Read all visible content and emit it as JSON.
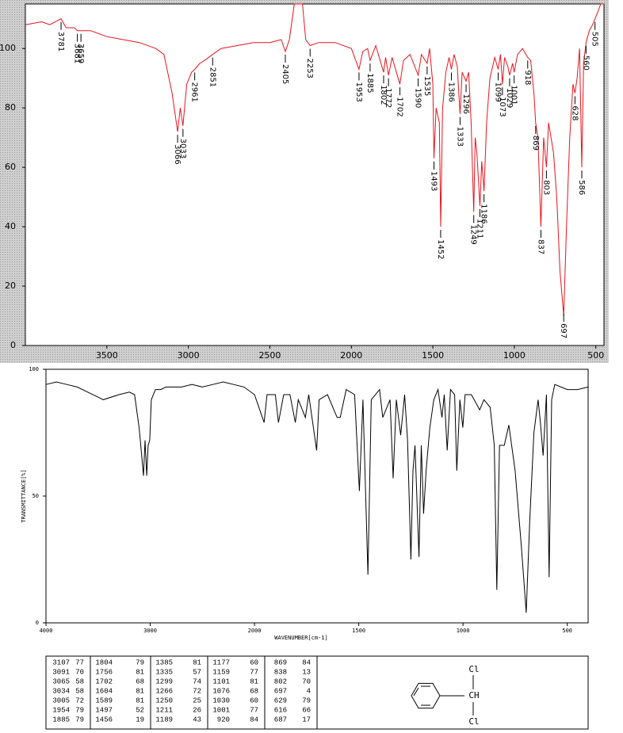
{
  "chart_data": [
    {
      "type": "line",
      "xlim": [
        4000,
        450
      ],
      "ylim": [
        0,
        115
      ],
      "xticks": [
        3500,
        3000,
        2500,
        2000,
        1500,
        1000,
        500
      ],
      "yticks": [
        0,
        20,
        40,
        60,
        80,
        100
      ],
      "x": [
        4000,
        3900,
        3850,
        3781,
        3750,
        3700,
        3681,
        3659,
        3600,
        3500,
        3400,
        3300,
        3200,
        3150,
        3100,
        3066,
        3050,
        3033,
        3010,
        2980,
        2961,
        2930,
        2900,
        2851,
        2800,
        2700,
        2600,
        2500,
        2430,
        2405,
        2380,
        2350,
        2300,
        2280,
        2253,
        2200,
        2100,
        2000,
        1953,
        1930,
        1900,
        1885,
        1850,
        1802,
        1790,
        1772,
        1750,
        1702,
        1680,
        1640,
        1590,
        1570,
        1535,
        1520,
        1500,
        1493,
        1480,
        1460,
        1452,
        1440,
        1420,
        1400,
        1386,
        1370,
        1350,
        1333,
        1320,
        1296,
        1280,
        1265,
        1249,
        1240,
        1230,
        1211,
        1200,
        1186,
        1170,
        1150,
        1120,
        1099,
        1085,
        1073,
        1060,
        1040,
        1029,
        1010,
        1001,
        980,
        950,
        918,
        900,
        880,
        869,
        855,
        837,
        820,
        803,
        790,
        760,
        740,
        720,
        697,
        680,
        660,
        640,
        628,
        615,
        600,
        586,
        575,
        560,
        540,
        520,
        505,
        490,
        470,
        450
      ],
      "series": [
        {
          "color": "#e8141e",
          "values": [
            108,
            109,
            108,
            110,
            107,
            107,
            106,
            106,
            106,
            104,
            103,
            102,
            100,
            98,
            85,
            72,
            80,
            74,
            88,
            92,
            93,
            95,
            96,
            98,
            100,
            101,
            102,
            102,
            103,
            99,
            103,
            115,
            115,
            103,
            101,
            102,
            102,
            100,
            93,
            99,
            100,
            96,
            101,
            92,
            97,
            91,
            97,
            88,
            96,
            98,
            91,
            98,
            95,
            100,
            88,
            63,
            80,
            75,
            40,
            80,
            92,
            97,
            93,
            98,
            94,
            78,
            92,
            89,
            92,
            75,
            45,
            70,
            65,
            47,
            62,
            52,
            75,
            90,
            97,
            93,
            98,
            88,
            97,
            94,
            91,
            95,
            92,
            98,
            100,
            97,
            96,
            85,
            75,
            70,
            40,
            70,
            60,
            75,
            65,
            50,
            25,
            10,
            40,
            70,
            88,
            85,
            90,
            100,
            60,
            95,
            102,
            106,
            108,
            110,
            112,
            115,
            115
          ]
        }
      ],
      "peaks": [
        3781,
        3681,
        3659,
        3066,
        3033,
        2961,
        2851,
        2405,
        2253,
        1953,
        1885,
        1802,
        1772,
        1702,
        1590,
        1535,
        1493,
        1452,
        1386,
        1333,
        1296,
        1249,
        1211,
        1186,
        1099,
        1073,
        1029,
        1001,
        918,
        869,
        837,
        803,
        697,
        628,
        586,
        560,
        505
      ],
      "peak_y": [
        110,
        106,
        106,
        72,
        74,
        93,
        98,
        99,
        101,
        93,
        96,
        92,
        91,
        88,
        91,
        95,
        63,
        40,
        93,
        78,
        89,
        45,
        47,
        52,
        93,
        88,
        91,
        92,
        97,
        75,
        40,
        60,
        10,
        85,
        60,
        102,
        110
      ]
    },
    {
      "type": "line",
      "xlim": [
        4000,
        400
      ],
      "ylim": [
        0,
        100
      ],
      "x_scale_break": 2000,
      "x_scale_factor": 2,
      "xlabel": "WAVENUMBER[cm-1]",
      "ylabel": "TRANSMITTANCE[%]",
      "xticks": [
        4000,
        3000,
        2000,
        1500,
        1000,
        500
      ],
      "yticks": [
        0,
        50,
        100
      ],
      "x": [
        4000,
        3900,
        3800,
        3700,
        3600,
        3500,
        3450,
        3300,
        3200,
        3150,
        3107,
        3091,
        3065,
        3050,
        3034,
        3020,
        3005,
        2990,
        2950,
        2900,
        2850,
        2800,
        2700,
        2600,
        2500,
        2400,
        2300,
        2200,
        2100,
        2000,
        1954,
        1940,
        1900,
        1885,
        1860,
        1830,
        1804,
        1790,
        1756,
        1740,
        1702,
        1690,
        1650,
        1604,
        1589,
        1560,
        1520,
        1497,
        1480,
        1456,
        1440,
        1400,
        1385,
        1350,
        1335,
        1320,
        1299,
        1280,
        1266,
        1250,
        1240,
        1230,
        1211,
        1200,
        1189,
        1177,
        1159,
        1140,
        1120,
        1101,
        1090,
        1076,
        1060,
        1040,
        1030,
        1015,
        1001,
        990,
        960,
        920,
        900,
        870,
        850,
        838,
        825,
        802,
        780,
        750,
        720,
        697,
        680,
        660,
        640,
        629,
        616,
        600,
        587,
        575,
        560,
        530,
        500,
        450,
        400
      ],
      "series": [
        {
          "color": "#000000",
          "values": [
            94,
            95,
            94,
            93,
            91,
            89,
            88,
            90,
            91,
            90,
            77,
            70,
            58,
            72,
            58,
            70,
            72,
            88,
            92,
            92,
            93,
            93,
            93,
            94,
            93,
            94,
            95,
            94,
            93,
            90,
            79,
            90,
            90,
            79,
            90,
            90,
            79,
            88,
            81,
            90,
            68,
            88,
            90,
            81,
            81,
            92,
            90,
            52,
            88,
            19,
            88,
            92,
            81,
            88,
            57,
            88,
            74,
            90,
            72,
            25,
            60,
            70,
            26,
            70,
            43,
            60,
            77,
            88,
            92,
            81,
            90,
            68,
            92,
            90,
            60,
            88,
            77,
            90,
            90,
            84,
            88,
            85,
            70,
            13,
            70,
            70,
            78,
            60,
            30,
            4,
            40,
            75,
            88,
            79,
            66,
            90,
            18,
            88,
            94,
            93,
            92,
            92,
            93
          ]
        }
      ]
    }
  ],
  "table": {
    "columns": [
      [
        [
          3107,
          77
        ],
        [
          3091,
          70
        ],
        [
          3065,
          58
        ],
        [
          3034,
          58
        ],
        [
          3005,
          72
        ],
        [
          1954,
          79
        ],
        [
          1885,
          79
        ]
      ],
      [
        [
          1804,
          79
        ],
        [
          1756,
          81
        ],
        [
          1702,
          68
        ],
        [
          1604,
          81
        ],
        [
          1589,
          81
        ],
        [
          1497,
          52
        ],
        [
          1456,
          19
        ]
      ],
      [
        [
          1385,
          81
        ],
        [
          1335,
          57
        ],
        [
          1299,
          74
        ],
        [
          1266,
          72
        ],
        [
          1250,
          25
        ],
        [
          1211,
          26
        ],
        [
          1189,
          43
        ]
      ],
      [
        [
          1177,
          60
        ],
        [
          1159,
          77
        ],
        [
          1101,
          81
        ],
        [
          1076,
          68
        ],
        [
          1030,
          60
        ],
        [
          1001,
          77
        ],
        [
          920,
          84
        ]
      ],
      [
        [
          869,
          84
        ],
        [
          838,
          13
        ],
        [
          802,
          70
        ],
        [
          697,
          4
        ],
        [
          629,
          79
        ],
        [
          616,
          66
        ],
        [
          687,
          17
        ]
      ]
    ]
  },
  "structure": {
    "labels": [
      "Cl",
      "CH",
      "Cl"
    ]
  }
}
